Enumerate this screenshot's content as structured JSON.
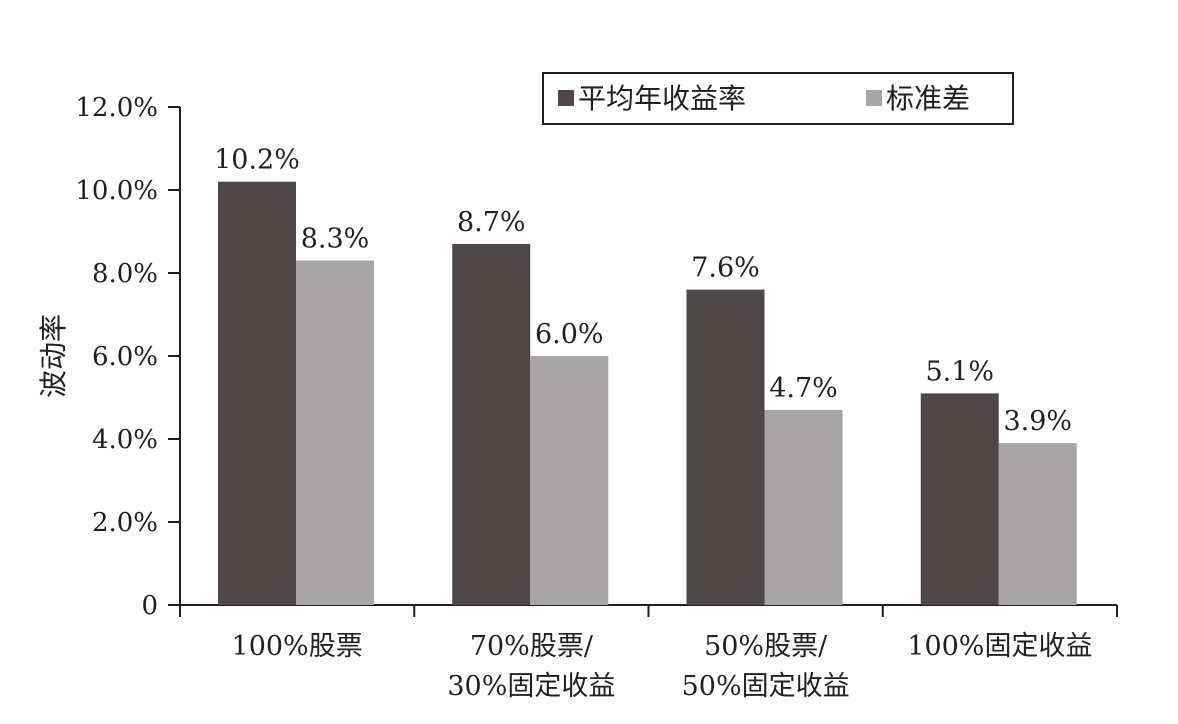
{
  "chart_data": {
    "type": "bar",
    "categories": [
      [
        "100%股票"
      ],
      [
        "70%股票/",
        "30%固定收益"
      ],
      [
        "50%股票/",
        "50%固定收益"
      ],
      [
        "100%固定收益"
      ]
    ],
    "series": [
      {
        "name": "平均年收益率",
        "values": [
          10.2,
          8.7,
          7.6,
          5.1
        ],
        "labels": [
          "10.2%",
          "8.7%",
          "7.6%",
          "5.1%"
        ],
        "color": "#4d4748"
      },
      {
        "name": "标准差",
        "values": [
          8.3,
          6.0,
          4.7,
          3.9
        ],
        "labels": [
          "8.3%",
          "6.0%",
          "4.7%",
          "3.9%"
        ],
        "color": "#a7a5a6"
      }
    ],
    "title": "",
    "xlabel": "",
    "ylabel": "波动率",
    "ylim": [
      0,
      12
    ],
    "yticks": [
      0,
      2,
      4,
      6,
      8,
      10,
      12
    ],
    "ytick_labels": [
      "0",
      "2.0%",
      "4.0%",
      "6.0%",
      "8.0%",
      "10.0%",
      "12.0%"
    ],
    "grid": false,
    "legend": "top-right"
  }
}
